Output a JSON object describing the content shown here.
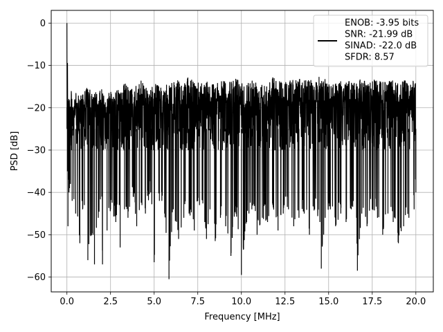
{
  "chart_data": {
    "type": "line",
    "title": "",
    "xlabel": "Frequency [MHz]",
    "ylabel": "PSD [dB]",
    "xlim": [
      -0.9,
      21.0
    ],
    "ylim": [
      -63.5,
      3.0
    ],
    "xticks": [
      0.0,
      2.5,
      5.0,
      7.5,
      10.0,
      12.5,
      15.0,
      17.5,
      20.0
    ],
    "xtick_labels": [
      "0.0",
      "2.5",
      "5.0",
      "7.5",
      "10.0",
      "12.5",
      "15.0",
      "17.5",
      "20.0"
    ],
    "yticks": [
      0,
      -10,
      -20,
      -30,
      -40,
      -50,
      -60
    ],
    "ytick_labels": [
      "0",
      "−10",
      "−20",
      "−30",
      "−40",
      "−50",
      "−60"
    ],
    "grid": true,
    "legend_position": "upper right",
    "legend_lines": [
      "ENOB: -3.95 bits",
      "SNR: -21.99 dB",
      "SINAD: -22.0 dB",
      "SFDR: 8.57"
    ],
    "line_color": "#000000",
    "grid_color": "#b0b0b0",
    "series": [
      {
        "x": [
          0.0,
          0.03,
          0.06,
          0.09,
          0.12,
          0.15,
          0.2,
          0.3,
          0.5,
          0.74,
          0.9,
          1.0,
          1.2,
          1.5,
          1.58,
          1.8,
          2.0,
          2.04,
          2.3,
          2.5,
          2.8,
          3.0,
          3.05,
          3.3,
          3.5,
          3.8,
          4.0,
          4.3,
          4.5,
          4.8,
          5.0,
          5.3,
          5.6,
          5.85,
          6.1,
          6.4,
          6.7,
          7.0,
          7.3,
          7.6,
          7.9,
          8.0,
          8.2,
          8.5,
          8.8,
          9.1,
          9.4,
          9.7,
          10.0,
          10.3,
          10.6,
          10.9,
          11.2,
          11.5,
          11.8,
          12.1,
          12.4,
          12.7,
          13.0,
          13.3,
          13.6,
          13.9,
          14.2,
          14.5,
          14.58,
          14.8,
          15.1,
          15.4,
          15.7,
          16.0,
          16.3,
          16.6,
          16.65,
          16.9,
          17.2,
          17.5,
          17.8,
          18.1,
          18.4,
          18.7,
          19.0,
          19.3,
          19.6,
          19.9,
          20.0
        ],
        "y_max": [
          0.0,
          -3.0,
          -14.0,
          -15.5,
          -16.0,
          -16.5,
          -15.0,
          -17.0,
          -16.5,
          -17.5,
          -14.5,
          -15.5,
          -15.0,
          -17.0,
          -16.0,
          -16.5,
          -15.5,
          -16.0,
          -17.5,
          -14.5,
          -16.0,
          -15.5,
          -15.0,
          -14.0,
          -15.0,
          -15.5,
          -14.5,
          -13.5,
          -14.5,
          -15.5,
          -14.0,
          -15.0,
          -15.5,
          -13.5,
          -14.0,
          -13.5,
          -14.5,
          -12.5,
          -14.0,
          -13.5,
          -14.0,
          -12.5,
          -14.5,
          -13.5,
          -14.0,
          -13.0,
          -14.0,
          -12.5,
          -13.5,
          -14.0,
          -13.0,
          -13.5,
          -13.0,
          -14.0,
          -12.5,
          -13.5,
          -13.0,
          -14.0,
          -12.5,
          -13.0,
          -13.5,
          -13.0,
          -14.0,
          -12.5,
          -13.5,
          -13.0,
          -13.5,
          -14.0,
          -13.0,
          -13.5,
          -14.0,
          -13.0,
          -13.5,
          -13.0,
          -14.0,
          -13.0,
          -13.5,
          -14.0,
          -13.0,
          -13.5,
          -14.0,
          -13.5,
          -14.0,
          -13.5,
          -14.5
        ],
        "y_min": [
          -20.0,
          -35.0,
          -48.0,
          -37.0,
          -40.0,
          -39.0,
          -38.0,
          -42.0,
          -45.0,
          -52.0,
          -44.0,
          -43.0,
          -56.0,
          -50.0,
          -57.0,
          -46.0,
          -41.0,
          -57.0,
          -49.0,
          -44.0,
          -47.0,
          -43.0,
          -53.0,
          -44.0,
          -46.0,
          -41.0,
          -48.0,
          -43.0,
          -45.0,
          -40.0,
          -56.5,
          -42.0,
          -45.0,
          -60.5,
          -44.0,
          -51.0,
          -46.0,
          -45.0,
          -49.0,
          -43.0,
          -47.0,
          -51.0,
          -44.0,
          -51.5,
          -46.0,
          -48.0,
          -55.0,
          -45.0,
          -59.5,
          -47.0,
          -44.0,
          -50.0,
          -46.0,
          -47.0,
          -43.0,
          -49.0,
          -45.0,
          -44.0,
          -48.0,
          -46.0,
          -45.0,
          -50.0,
          -44.0,
          -47.0,
          -58.0,
          -46.0,
          -44.0,
          -48.0,
          -45.0,
          -47.0,
          -44.0,
          -46.0,
          -58.5,
          -45.0,
          -48.0,
          -44.0,
          -46.0,
          -50.0,
          -45.0,
          -47.0,
          -52.0,
          -48.0,
          -46.0,
          -44.0,
          -40.0
        ]
      }
    ]
  }
}
